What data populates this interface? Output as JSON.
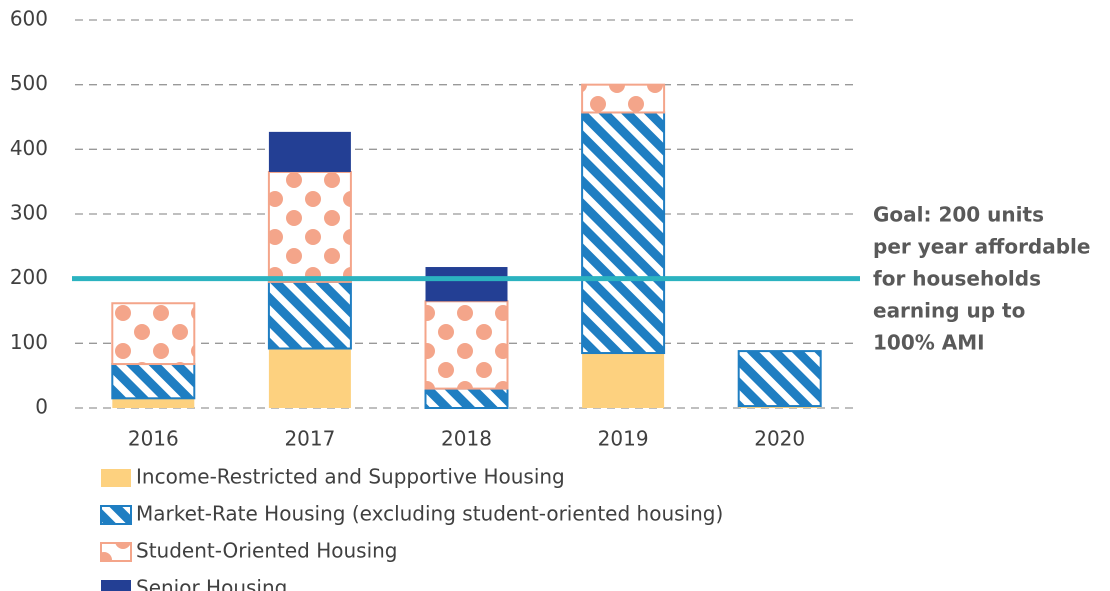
{
  "chart_data": {
    "type": "bar",
    "stacked": true,
    "categories": [
      "2016",
      "2017",
      "2018",
      "2019",
      "2020"
    ],
    "series": [
      {
        "name": "Income-Restricted and Supportive Housing",
        "color": "#fdd17f",
        "pattern": "solid",
        "values": [
          15,
          92,
          0,
          85,
          3
        ]
      },
      {
        "name": "Market-Rate Housing (excluding student-oriented housing)",
        "color": "#1f7ec2",
        "pattern": "stripes",
        "values": [
          53,
          103,
          30,
          372,
          85
        ]
      },
      {
        "name": "Student-Oriented Housing",
        "color": "#f4a58a",
        "pattern": "dots",
        "values": [
          94,
          170,
          135,
          43,
          0
        ]
      },
      {
        "name": "Senior Housing",
        "color": "#233f94",
        "pattern": "solid",
        "values": [
          0,
          62,
          53,
          0,
          0
        ]
      }
    ],
    "ylim": [
      0,
      600
    ],
    "yticks": [
      0,
      100,
      200,
      300,
      400,
      500,
      600
    ],
    "grid": true,
    "goal_line": {
      "value": 200,
      "color": "#2bb3c0",
      "label_lines": [
        "Goal: 200 units",
        "per year affordable",
        "for households",
        "earning up to",
        "100% AMI"
      ]
    },
    "legend": "bottom-left"
  }
}
